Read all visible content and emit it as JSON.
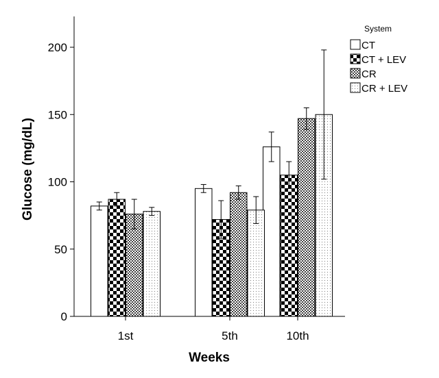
{
  "chart_data": {
    "type": "bar",
    "xlabel": "Weeks",
    "ylabel": "Glucose (mg/dL)",
    "categories": [
      "1st",
      "5th",
      "10th"
    ],
    "ylim": [
      0,
      220
    ],
    "yticks": [
      0,
      50,
      100,
      150,
      200
    ],
    "grid": false,
    "legend": {
      "title": "System",
      "placement": "top-right"
    },
    "series": [
      {
        "name": "CT",
        "pattern": "white",
        "values": [
          82,
          95,
          126
        ],
        "error": [
          3,
          3,
          11
        ]
      },
      {
        "name": "CT + LEV",
        "pattern": "checker",
        "values": [
          87,
          72,
          105
        ],
        "error": [
          5,
          14,
          10
        ]
      },
      {
        "name": "CR",
        "pattern": "fine-check",
        "values": [
          76,
          92,
          147
        ],
        "error": [
          11,
          5,
          8
        ]
      },
      {
        "name": "CR + LEV",
        "pattern": "dots",
        "values": [
          78,
          79,
          150
        ],
        "error": [
          3,
          10,
          48
        ]
      }
    ]
  }
}
